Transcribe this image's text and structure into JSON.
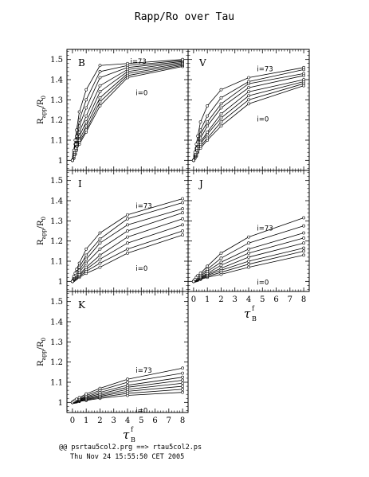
{
  "title": "Rapp/Ro over Tau",
  "footer": {
    "line1": "@@ psrtau5col2.prg ==> rtau5col2.ps",
    "line2": "Thu Nov 24 15:55:50 CET 2005"
  },
  "axes": {
    "ylabel_main": "R",
    "ylabel_sub": "app",
    "ylabel_slash": "/R",
    "ylabel_sub2": "0",
    "xlabel_main": "τ",
    "xlabel_sub": "B",
    "xlabel_sup": "f"
  },
  "chart_data": [
    {
      "type": "line",
      "panel": "B",
      "x": [
        0,
        0.1,
        0.2,
        0.3,
        0.5,
        1,
        2,
        4,
        8
      ],
      "xlim": [
        -0.4,
        8.4
      ],
      "ylim": [
        0.95,
        1.55
      ],
      "xticks": [
        "0",
        "1",
        "2",
        "3",
        "4",
        "5",
        "6",
        "7",
        "8"
      ],
      "yticks": [
        "1",
        "1.1",
        "1.2",
        "1.3",
        "1.4",
        "1.5"
      ],
      "annotations": [
        "i=73",
        "i=0"
      ],
      "series": [
        {
          "values": [
            1.0,
            1.01,
            1.03,
            1.05,
            1.08,
            1.14,
            1.27,
            1.41,
            1.465
          ]
        },
        {
          "values": [
            1.0,
            1.01,
            1.03,
            1.05,
            1.09,
            1.15,
            1.29,
            1.42,
            1.47
          ]
        },
        {
          "values": [
            1.0,
            1.015,
            1.035,
            1.06,
            1.1,
            1.17,
            1.31,
            1.43,
            1.475
          ]
        },
        {
          "values": [
            1.0,
            1.02,
            1.04,
            1.07,
            1.12,
            1.19,
            1.34,
            1.44,
            1.48
          ]
        },
        {
          "values": [
            1.0,
            1.02,
            1.05,
            1.08,
            1.14,
            1.22,
            1.37,
            1.45,
            1.485
          ]
        },
        {
          "values": [
            1.0,
            1.03,
            1.06,
            1.1,
            1.17,
            1.26,
            1.41,
            1.46,
            1.49
          ]
        },
        {
          "values": [
            1.0,
            1.04,
            1.08,
            1.12,
            1.2,
            1.3,
            1.44,
            1.47,
            1.495
          ]
        },
        {
          "values": [
            1.0,
            1.05,
            1.1,
            1.15,
            1.24,
            1.35,
            1.47,
            1.48,
            1.5
          ]
        }
      ]
    },
    {
      "type": "line",
      "panel": "V",
      "x": [
        0,
        0.1,
        0.2,
        0.3,
        0.5,
        1,
        2,
        4,
        8
      ],
      "xlim": [
        -0.4,
        8.4
      ],
      "ylim": [
        0.95,
        1.55
      ],
      "xticks": [
        "0",
        "1",
        "2",
        "3",
        "4",
        "5",
        "6",
        "7",
        "8"
      ],
      "yticks": [
        "1",
        "1.1",
        "1.2",
        "1.3",
        "1.4",
        "1.5"
      ],
      "annotations": [
        "i=73",
        "i=0"
      ],
      "series": [
        {
          "values": [
            1.0,
            1.01,
            1.02,
            1.04,
            1.06,
            1.1,
            1.17,
            1.28,
            1.37
          ]
        },
        {
          "values": [
            1.0,
            1.01,
            1.025,
            1.045,
            1.07,
            1.11,
            1.19,
            1.3,
            1.38
          ]
        },
        {
          "values": [
            1.0,
            1.015,
            1.03,
            1.05,
            1.08,
            1.13,
            1.21,
            1.32,
            1.39
          ]
        },
        {
          "values": [
            1.0,
            1.02,
            1.035,
            1.06,
            1.09,
            1.14,
            1.23,
            1.34,
            1.4
          ]
        },
        {
          "values": [
            1.0,
            1.02,
            1.04,
            1.07,
            1.11,
            1.17,
            1.26,
            1.36,
            1.42
          ]
        },
        {
          "values": [
            1.0,
            1.025,
            1.05,
            1.08,
            1.13,
            1.19,
            1.28,
            1.38,
            1.43
          ]
        },
        {
          "values": [
            1.0,
            1.03,
            1.06,
            1.09,
            1.15,
            1.22,
            1.31,
            1.39,
            1.45
          ]
        },
        {
          "values": [
            1.0,
            1.04,
            1.08,
            1.12,
            1.19,
            1.27,
            1.35,
            1.41,
            1.46
          ]
        }
      ]
    },
    {
      "type": "line",
      "panel": "I",
      "x": [
        0,
        0.1,
        0.2,
        0.3,
        0.5,
        1,
        2,
        4,
        8
      ],
      "xlim": [
        -0.4,
        8.4
      ],
      "ylim": [
        0.95,
        1.55
      ],
      "xticks": [
        "0",
        "1",
        "2",
        "3",
        "4",
        "5",
        "6",
        "7",
        "8"
      ],
      "yticks": [
        "1",
        "1.1",
        "1.2",
        "1.3",
        "1.4",
        "1.5"
      ],
      "annotations": [
        "i=73",
        "i=0"
      ],
      "series": [
        {
          "values": [
            1.0,
            1.005,
            1.01,
            1.015,
            1.02,
            1.04,
            1.07,
            1.14,
            1.23
          ]
        },
        {
          "values": [
            1.0,
            1.006,
            1.012,
            1.018,
            1.025,
            1.05,
            1.09,
            1.16,
            1.25
          ]
        },
        {
          "values": [
            1.0,
            1.008,
            1.015,
            1.02,
            1.03,
            1.06,
            1.11,
            1.19,
            1.28
          ]
        },
        {
          "values": [
            1.0,
            1.01,
            1.018,
            1.025,
            1.035,
            1.07,
            1.13,
            1.22,
            1.31
          ]
        },
        {
          "values": [
            1.0,
            1.012,
            1.02,
            1.03,
            1.045,
            1.09,
            1.16,
            1.25,
            1.34
          ]
        },
        {
          "values": [
            1.0,
            1.015,
            1.025,
            1.035,
            1.055,
            1.11,
            1.19,
            1.28,
            1.36
          ]
        },
        {
          "values": [
            1.0,
            1.02,
            1.03,
            1.045,
            1.07,
            1.13,
            1.21,
            1.31,
            1.39
          ]
        },
        {
          "values": [
            1.0,
            1.025,
            1.04,
            1.06,
            1.09,
            1.16,
            1.24,
            1.33,
            1.41
          ]
        }
      ]
    },
    {
      "type": "line",
      "panel": "J",
      "x": [
        0,
        0.1,
        0.2,
        0.3,
        0.5,
        1,
        2,
        4,
        8
      ],
      "xlim": [
        -0.4,
        8.4
      ],
      "ylim": [
        0.95,
        1.55
      ],
      "xticks": [
        "0",
        "1",
        "2",
        "3",
        "4",
        "5",
        "6",
        "7",
        "8"
      ],
      "yticks": [
        "1",
        "1.1",
        "1.2",
        "1.3",
        "1.4",
        "1.5"
      ],
      "annotations": [
        "i=73",
        "i=0"
      ],
      "series": [
        {
          "values": [
            1.0,
            1.002,
            1.004,
            1.006,
            1.01,
            1.02,
            1.035,
            1.07,
            1.13
          ]
        },
        {
          "values": [
            1.0,
            1.003,
            1.005,
            1.008,
            1.012,
            1.025,
            1.045,
            1.085,
            1.15
          ]
        },
        {
          "values": [
            1.0,
            1.004,
            1.007,
            1.01,
            1.015,
            1.03,
            1.055,
            1.1,
            1.165
          ]
        },
        {
          "values": [
            1.0,
            1.005,
            1.008,
            1.012,
            1.018,
            1.035,
            1.065,
            1.12,
            1.19
          ]
        },
        {
          "values": [
            1.0,
            1.006,
            1.01,
            1.015,
            1.022,
            1.04,
            1.08,
            1.14,
            1.215
          ]
        },
        {
          "values": [
            1.0,
            1.007,
            1.012,
            1.018,
            1.027,
            1.05,
            1.095,
            1.16,
            1.24
          ]
        },
        {
          "values": [
            1.0,
            1.008,
            1.015,
            1.022,
            1.033,
            1.06,
            1.115,
            1.19,
            1.275
          ]
        },
        {
          "values": [
            1.0,
            1.01,
            1.02,
            1.028,
            1.04,
            1.075,
            1.14,
            1.22,
            1.315
          ]
        }
      ]
    },
    {
      "type": "line",
      "panel": "K",
      "x": [
        0,
        0.1,
        0.2,
        0.3,
        0.5,
        1,
        2,
        4,
        8
      ],
      "xlim": [
        -0.4,
        8.4
      ],
      "ylim": [
        0.95,
        1.55
      ],
      "xticks": [
        "0",
        "1",
        "2",
        "3",
        "4",
        "5",
        "6",
        "7",
        "8"
      ],
      "yticks": [
        "1",
        "1.1",
        "1.2",
        "1.3",
        "1.4",
        "1.5"
      ],
      "annotations": [
        "i=73",
        "i=0"
      ],
      "series": [
        {
          "values": [
            1.0,
            1.001,
            1.002,
            1.003,
            1.005,
            1.01,
            1.02,
            1.035,
            1.05
          ]
        },
        {
          "values": [
            1.0,
            1.002,
            1.003,
            1.005,
            1.007,
            1.013,
            1.025,
            1.045,
            1.065
          ]
        },
        {
          "values": [
            1.0,
            1.002,
            1.004,
            1.006,
            1.009,
            1.016,
            1.03,
            1.055,
            1.08
          ]
        },
        {
          "values": [
            1.0,
            1.003,
            1.005,
            1.007,
            1.011,
            1.02,
            1.035,
            1.065,
            1.095
          ]
        },
        {
          "values": [
            1.0,
            1.003,
            1.006,
            1.009,
            1.013,
            1.024,
            1.042,
            1.075,
            1.11
          ]
        },
        {
          "values": [
            1.0,
            1.004,
            1.007,
            1.01,
            1.015,
            1.028,
            1.05,
            1.085,
            1.125
          ]
        },
        {
          "values": [
            1.0,
            1.005,
            1.009,
            1.013,
            1.019,
            1.034,
            1.06,
            1.1,
            1.145
          ]
        },
        {
          "values": [
            1.0,
            1.006,
            1.011,
            1.016,
            1.024,
            1.042,
            1.07,
            1.115,
            1.17
          ]
        }
      ]
    }
  ]
}
